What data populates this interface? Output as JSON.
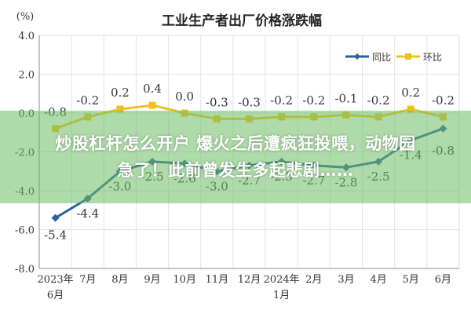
{
  "chart_data": {
    "type": "line",
    "title": "工业生产者出厂价格涨跌幅",
    "ylabel": "(%)",
    "ylim": [
      -8.0,
      4.0
    ],
    "yticks": [
      "4.0",
      "2.0",
      "0.0",
      "-2.0",
      "-4.0",
      "-6.0",
      "-8.0"
    ],
    "grid": true,
    "legend_position": "top-right",
    "categories": [
      "2023年6月",
      "7月",
      "8月",
      "9月",
      "10月",
      "11月",
      "12月",
      "2024年1月",
      "2月",
      "3月",
      "4月",
      "5月",
      "6月"
    ],
    "series": [
      {
        "name": "同比",
        "color": "#2a5fa0",
        "values": [
          -5.4,
          -4.4,
          -3.0,
          -2.5,
          -2.6,
          -3.0,
          -2.7,
          -2.5,
          -2.7,
          -2.8,
          -2.5,
          -1.4,
          -0.8
        ],
        "labels": [
          "-5.4",
          "-4.4",
          "-3.0",
          "-2.5",
          "-2.6",
          "-3.0",
          "-2.7",
          "-2.5",
          "-2.7",
          "-2.8",
          "-2.5",
          "-1.4",
          "-0.8"
        ]
      },
      {
        "name": "环比",
        "color": "#f0c020",
        "values": [
          -0.8,
          -0.2,
          0.2,
          0.4,
          0.0,
          -0.3,
          -0.3,
          -0.2,
          -0.2,
          -0.1,
          -0.2,
          0.2,
          -0.2
        ],
        "labels": [
          "-0.8",
          "-0.2",
          "0.2",
          "0.4",
          "0.0",
          "-0.3",
          "-0.3",
          "-0.2",
          "-0.2",
          "-0.1",
          "-0.2",
          "0.2",
          "-0.2"
        ]
      }
    ]
  },
  "overlay": {
    "line1": "炒股杠杆怎么开户 爆火之后遭疯狂投喂，动物园",
    "line2": "急了！此前曾发生多起悲剧……"
  }
}
